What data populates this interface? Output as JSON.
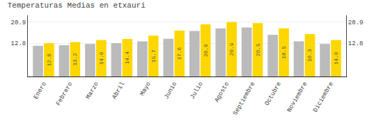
{
  "chart_data": {
    "type": "bar",
    "title": "Temperaturas Medias en etxauri",
    "categories": [
      "Enero",
      "Febrero",
      "Marzo",
      "Abril",
      "Mayo",
      "Junio",
      "Julio",
      "Agosto",
      "Septiembre",
      "Octubre",
      "Noviembre",
      "Diciembre"
    ],
    "series": [
      {
        "color": "#BBBBBB",
        "values": [
          11.8,
          12.0,
          12.5,
          12.8,
          13.5,
          14.5,
          17.5,
          18.5,
          18.8,
          16.0,
          13.5,
          12.5
        ]
      },
      {
        "color": "#FFD700",
        "values": [
          12.8,
          13.2,
          14.0,
          14.4,
          15.7,
          17.6,
          20.0,
          20.9,
          20.5,
          18.5,
          16.3,
          14.0
        ],
        "value_labels": [
          "12.8",
          "13.2",
          "14.0",
          "14.4",
          "15.7",
          "17.6",
          "20.0",
          "20.9",
          "20.5",
          "18.5",
          "16.3",
          "14.0"
        ],
        "data_labels": true
      }
    ],
    "ylim": [
      0,
      23.5
    ],
    "yticks": [
      12.8,
      20.9
    ],
    "y2lim": [
      0,
      23.5
    ],
    "y2ticks": [
      12.8,
      20.9
    ],
    "grid": true
  }
}
